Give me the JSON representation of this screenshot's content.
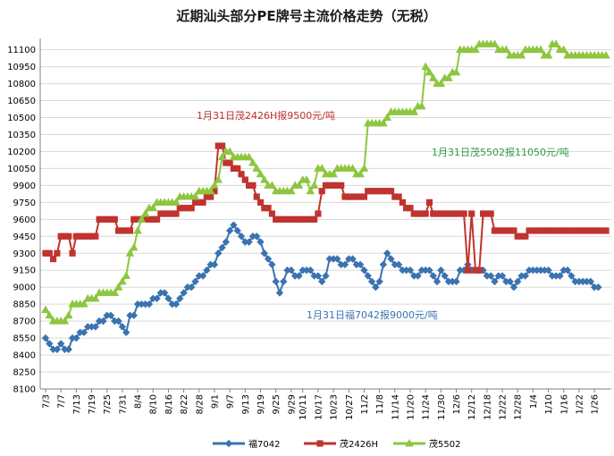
{
  "chart_data": {
    "type": "line",
    "title": "近期汕头部分PE牌号主流价格走势（无税）",
    "ylim": [
      8100,
      11200
    ],
    "yticks": [
      8100,
      8250,
      8400,
      8550,
      8700,
      8850,
      9000,
      9150,
      9300,
      9450,
      9600,
      9750,
      9900,
      10050,
      10200,
      10350,
      10500,
      10650,
      10800,
      10950,
      11100
    ],
    "x_labels": [
      "7/3",
      "7/7",
      "7/13",
      "7/19",
      "7/25",
      "7/31",
      "8/4",
      "8/10",
      "8/16",
      "8/22",
      "8/28",
      "9/1",
      "9/7",
      "9/13",
      "9/19",
      "9/25",
      "9/29",
      "10/11",
      "10/17",
      "10/23",
      "10/27",
      "11/2",
      "11/8",
      "11/14",
      "11/20",
      "11/24",
      "11/30",
      "12/6",
      "12/12",
      "12/18",
      "12/22",
      "12/28",
      "1/4",
      "1/10",
      "1/16",
      "1/22",
      "1/26"
    ],
    "x_points": [
      "7/3",
      "7/4",
      "7/5",
      "7/6",
      "7/7",
      "7/10",
      "7/11",
      "7/12",
      "7/13",
      "7/14",
      "7/17",
      "7/18",
      "7/19",
      "7/20",
      "7/21",
      "7/24",
      "7/25",
      "7/26",
      "7/27",
      "7/28",
      "7/31",
      "8/1",
      "8/2",
      "8/3",
      "8/4",
      "8/7",
      "8/8",
      "8/9",
      "8/10",
      "8/11",
      "8/14",
      "8/15",
      "8/16",
      "8/17",
      "8/18",
      "8/21",
      "8/22",
      "8/23",
      "8/24",
      "8/25",
      "8/28",
      "8/29",
      "8/30",
      "8/31",
      "9/1",
      "9/4",
      "9/5",
      "9/6",
      "9/7",
      "9/8",
      "9/11",
      "9/12",
      "9/13",
      "9/14",
      "9/15",
      "9/18",
      "9/19",
      "9/20",
      "9/21",
      "9/22",
      "9/25",
      "9/26",
      "9/27",
      "9/28",
      "9/29",
      "10/9",
      "10/10",
      "10/11",
      "10/12",
      "10/13",
      "10/16",
      "10/17",
      "10/18",
      "10/19",
      "10/20",
      "10/23",
      "10/24",
      "10/25",
      "10/26",
      "10/27",
      "10/30",
      "10/31",
      "11/1",
      "11/2",
      "11/3",
      "11/6",
      "11/7",
      "11/8",
      "11/9",
      "11/10",
      "11/13",
      "11/14",
      "11/15",
      "11/16",
      "11/17",
      "11/20",
      "11/21",
      "11/22",
      "11/23",
      "11/24",
      "11/27",
      "11/28",
      "11/29",
      "11/30",
      "12/1",
      "12/4",
      "12/5",
      "12/6",
      "12/7",
      "12/8",
      "12/11",
      "12/12",
      "12/13",
      "12/14",
      "12/15",
      "12/18",
      "12/19",
      "12/20",
      "12/21",
      "12/22",
      "12/25",
      "12/26",
      "12/27",
      "12/28",
      "12/29",
      "1/2",
      "1/3",
      "1/4",
      "1/5",
      "1/8",
      "1/9",
      "1/10",
      "1/11",
      "1/12",
      "1/15",
      "1/16",
      "1/17",
      "1/18",
      "1/19",
      "1/22",
      "1/23",
      "1/24",
      "1/25",
      "1/26",
      "1/29",
      "1/30",
      "1/31"
    ],
    "series": [
      {
        "name": "福7042",
        "color": "#3a73b0",
        "marker": "diamond",
        "values": [
          8550,
          8500,
          8450,
          8450,
          8500,
          8450,
          8450,
          8550,
          8550,
          8600,
          8600,
          8650,
          8650,
          8650,
          8700,
          8700,
          8750,
          8750,
          8700,
          8700,
          8650,
          8600,
          8750,
          8750,
          8850,
          8850,
          8850,
          8850,
          8900,
          8900,
          8950,
          8950,
          8900,
          8850,
          8850,
          8900,
          8950,
          9000,
          9000,
          9050,
          9100,
          9100,
          9150,
          9200,
          9200,
          9300,
          9350,
          9400,
          9500,
          9550,
          9500,
          9450,
          9400,
          9400,
          9450,
          9450,
          9400,
          9300,
          9250,
          9200,
          9050,
          8950,
          9050,
          9150,
          9150,
          9100,
          9100,
          9150,
          9150,
          9150,
          9100,
          9100,
          9050,
          9100,
          9250,
          9250,
          9250,
          9200,
          9200,
          9250,
          9250,
          9200,
          9200,
          9150,
          9100,
          9050,
          9000,
          9050,
          9200,
          9300,
          9250,
          9200,
          9200,
          9150,
          9150,
          9150,
          9100,
          9100,
          9150,
          9150,
          9150,
          9100,
          9050,
          9150,
          9100,
          9050,
          9050,
          9050,
          9150,
          9150,
          9200,
          9150,
          9150,
          9150,
          9150,
          9100,
          9100,
          9050,
          9100,
          9100,
          9050,
          9050,
          9000,
          9050,
          9100,
          9100,
          9150,
          9150,
          9150,
          9150,
          9150,
          9150,
          9100,
          9100,
          9100,
          9150,
          9150,
          9100,
          9050,
          9050,
          9050,
          9050,
          9050,
          9000,
          9000
        ]
      },
      {
        "name": "茂2426H",
        "color": "#c0332f",
        "marker": "square",
        "values": [
          9300,
          9300,
          9250,
          9300,
          9450,
          9450,
          9450,
          9300,
          9450,
          9450,
          9450,
          9450,
          9450,
          9450,
          9600,
          9600,
          9600,
          9600,
          9600,
          9500,
          9500,
          9500,
          9500,
          9600,
          9600,
          9600,
          9600,
          9600,
          9600,
          9600,
          9650,
          9650,
          9650,
          9650,
          9650,
          9700,
          9700,
          9700,
          9700,
          9750,
          9750,
          9750,
          9800,
          9800,
          9850,
          10250,
          10250,
          10100,
          10100,
          10050,
          10050,
          10000,
          9950,
          9900,
          9900,
          9800,
          9750,
          9700,
          9700,
          9650,
          9600,
          9600,
          9600,
          9600,
          9600,
          9600,
          9600,
          9600,
          9600,
          9600,
          9600,
          9650,
          9850,
          9900,
          9900,
          9900,
          9900,
          9900,
          9800,
          9800,
          9800,
          9800,
          9800,
          9800,
          9850,
          9850,
          9850,
          9850,
          9850,
          9850,
          9850,
          9800,
          9800,
          9750,
          9700,
          9700,
          9650,
          9650,
          9650,
          9650,
          9750,
          9650,
          9650,
          9650,
          9650,
          9650,
          9650,
          9650,
          9650,
          9650,
          9150,
          9650,
          9150,
          9150,
          9650,
          9650,
          9650,
          9500,
          9500,
          9500,
          9500,
          9500,
          9500,
          9450,
          9450,
          9450,
          9500,
          9500,
          9500,
          9500,
          9500,
          9500,
          9500,
          9500,
          9500,
          9500,
          9500,
          9500,
          9500,
          9500,
          9500,
          9500,
          9500,
          9500,
          9500,
          9500,
          9500
        ]
      },
      {
        "name": "茂5502",
        "color": "#8dc63f",
        "marker": "triangle",
        "values": [
          8800,
          8750,
          8700,
          8700,
          8700,
          8700,
          8750,
          8850,
          8850,
          8850,
          8850,
          8900,
          8900,
          8900,
          8950,
          8950,
          8950,
          8950,
          8950,
          9000,
          9050,
          9100,
          9300,
          9350,
          9500,
          9600,
          9650,
          9700,
          9700,
          9750,
          9750,
          9750,
          9750,
          9750,
          9750,
          9800,
          9800,
          9800,
          9800,
          9800,
          9850,
          9850,
          9850,
          9850,
          9900,
          9950,
          10150,
          10200,
          10200,
          10150,
          10150,
          10150,
          10150,
          10150,
          10100,
          10050,
          10000,
          9950,
          9900,
          9900,
          9850,
          9850,
          9850,
          9850,
          9850,
          9900,
          9900,
          9950,
          9950,
          9850,
          9900,
          10050,
          10050,
          10000,
          10000,
          10000,
          10050,
          10050,
          10050,
          10050,
          10050,
          10000,
          10000,
          10050,
          10450,
          10450,
          10450,
          10450,
          10450,
          10500,
          10550,
          10550,
          10550,
          10550,
          10550,
          10550,
          10550,
          10600,
          10600,
          10950,
          10900,
          10850,
          10800,
          10800,
          10850,
          10850,
          10900,
          10900,
          11100,
          11100,
          11100,
          11100,
          11100,
          11150,
          11150,
          11150,
          11150,
          11150,
          11100,
          11100,
          11100,
          11050,
          11050,
          11050,
          11050,
          11100,
          11100,
          11100,
          11100,
          11100,
          11050,
          11050,
          11150,
          11150,
          11100,
          11100,
          11050,
          11050,
          11050,
          11050,
          11050,
          11050,
          11050,
          11050,
          11050,
          11050,
          11050
        ]
      }
    ],
    "annotations": [
      {
        "text": "1月31日茂2426H报9500元/吨",
        "color": "#c0332f"
      },
      {
        "text": "1月31日茂5502报11050元/吨",
        "color": "#2e9b45"
      },
      {
        "text": "1月31日福7042报9000元/吨",
        "color": "#3a73b0"
      }
    ],
    "grid": true,
    "legend_position": "bottom"
  }
}
